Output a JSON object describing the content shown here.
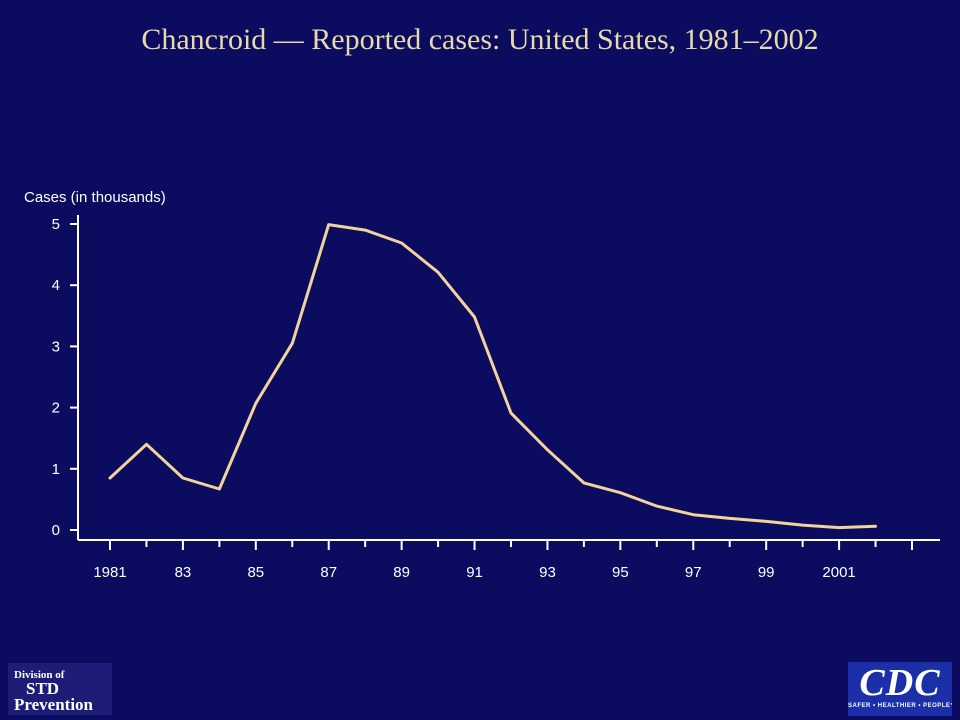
{
  "colors": {
    "background": "#0b0b60",
    "title": "#e8d9a8",
    "axis": "#ffffff",
    "line": "#f2d49a"
  },
  "logos": {
    "std_line1": "Division of",
    "std_line2": "STD",
    "std_line3": "Prevention",
    "cdc_main": "CDC",
    "cdc_tagline": "SAFER • HEALTHIER • PEOPLE™"
  },
  "chart_data": {
    "type": "line",
    "title": "Chancroid — Reported cases: United States, 1981–2002",
    "ylabel": "Cases (in thousands)",
    "xlabel": "",
    "x": [
      1981,
      1982,
      1983,
      1984,
      1985,
      1986,
      1987,
      1988,
      1989,
      1990,
      1991,
      1992,
      1993,
      1994,
      1995,
      1996,
      1997,
      1998,
      1999,
      2000,
      2001,
      2002
    ],
    "xlim": [
      1981,
      2003
    ],
    "x_tick_values": [
      1981,
      1983,
      1985,
      1987,
      1989,
      1991,
      1993,
      1995,
      1997,
      1999,
      2001
    ],
    "x_tick_labels": [
      "1981",
      "83",
      "85",
      "87",
      "89",
      "91",
      "93",
      "95",
      "97",
      "99",
      "2001"
    ],
    "ylim": [
      0,
      5
    ],
    "y_ticks": [
      0,
      1,
      2,
      3,
      4,
      5
    ],
    "y_tick_labels": [
      "0",
      "1",
      "2",
      "3",
      "4",
      "5"
    ],
    "grid": false,
    "legend": "none",
    "series": [
      {
        "values": [
          0.85,
          1.4,
          0.85,
          0.67,
          2.07,
          3.05,
          4.99,
          4.9,
          4.69,
          4.21,
          3.48,
          1.91,
          1.31,
          0.77,
          0.61,
          0.39,
          0.25,
          0.19,
          0.14,
          0.08,
          0.04,
          0.06
        ]
      }
    ]
  }
}
